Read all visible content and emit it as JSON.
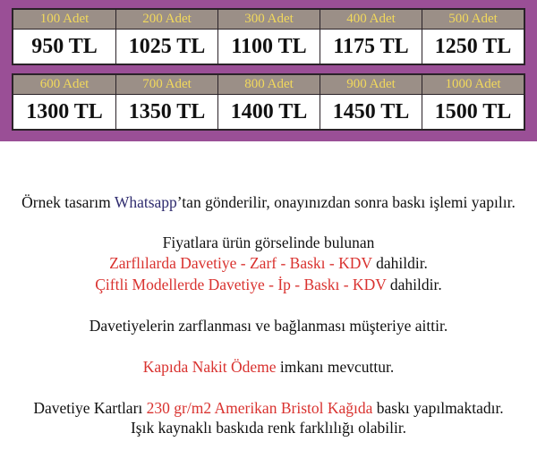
{
  "price_rows": [
    [
      {
        "quantity": "100 Adet",
        "price": "950 TL"
      },
      {
        "quantity": "200 Adet",
        "price": "1025 TL"
      },
      {
        "quantity": "300 Adet",
        "price": "1100 TL"
      },
      {
        "quantity": "400 Adet",
        "price": "1175 TL"
      },
      {
        "quantity": "500 Adet",
        "price": "1250 TL"
      }
    ],
    [
      {
        "quantity": "600 Adet",
        "price": "1300 TL"
      },
      {
        "quantity": "700 Adet",
        "price": "1350 TL"
      },
      {
        "quantity": "800 Adet",
        "price": "1400 TL"
      },
      {
        "quantity": "900 Adet",
        "price": "1450 TL"
      },
      {
        "quantity": "1000 Adet",
        "price": "1500 TL"
      }
    ]
  ],
  "notes": {
    "line1": {
      "a": "Örnek tasarım ",
      "b": "Whatsapp",
      "c": "’tan gönderilir, onayınızdan sonra baskı işlemi yapılır."
    },
    "line2": "Fiyatlara ürün görselinde bulunan",
    "line3": {
      "a": "Zarflılarda Davetiye - Zarf - Baskı - KDV",
      "b": " dahildir."
    },
    "line4": {
      "a": "Çiftli Modellerde Davetiye - İp - Baskı - KDV",
      "b": " dahildir."
    },
    "line5": "Davetiyelerin zarflanması ve bağlanması müşteriye aittir.",
    "line6": {
      "a": "Kapıda Nakit Ödeme",
      "b": " imkanı mevcuttur."
    },
    "line7": {
      "a": "Davetiye Kartları ",
      "b": "230 gr/m2 Amerikan Bristol Kağıda",
      "c": " baskı yapılmaktadır."
    },
    "line8": "Işık kaynaklı baskıda renk farklılığı olabilir."
  },
  "colors": {
    "band": "#9a4f96",
    "header_bg": "#9b8f87",
    "header_text": "#f2d95c",
    "highlight_red": "#d9322f",
    "highlight_blue": "#2e2b6e"
  }
}
